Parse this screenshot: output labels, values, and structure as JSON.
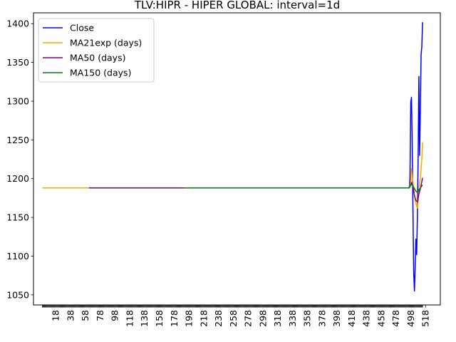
{
  "chart_data": {
    "type": "line",
    "title": "TLV:HIPR - HIPER GLOBAL: interval=1d",
    "xlabel": "",
    "ylabel": "",
    "xlim": [
      -12,
      538
    ],
    "ylim": [
      1037,
      1414
    ],
    "x_ticks": [
      18,
      38,
      58,
      78,
      98,
      118,
      138,
      158,
      178,
      198,
      218,
      238,
      258,
      278,
      298,
      318,
      338,
      358,
      378,
      398,
      418,
      438,
      458,
      478,
      498,
      518
    ],
    "x_tick_labels": [
      "18",
      "38",
      "58",
      "78",
      "98",
      "118",
      "138",
      "158",
      "178",
      "198",
      "218",
      "238",
      "258",
      "278",
      "298",
      "318",
      "338",
      "358",
      "378",
      "398",
      "418",
      "438",
      "458",
      "478",
      "498",
      "518"
    ],
    "y_ticks": [
      1050,
      1100,
      1150,
      1200,
      1250,
      1300,
      1350,
      1400
    ],
    "y_tick_labels": [
      "1050",
      "1100",
      "1150",
      "1200",
      "1250",
      "1300",
      "1350",
      "1400"
    ],
    "legend_position": "top-left",
    "grid": false,
    "series": [
      {
        "name": "Close",
        "color": "#0000ff",
        "points": [
          [
            496,
            1188
          ],
          [
            497,
            1200
          ],
          [
            498,
            1298
          ],
          [
            499,
            1305
          ],
          [
            500,
            1250
          ],
          [
            501,
            1160
          ],
          [
            502,
            1080
          ],
          [
            503,
            1055
          ],
          [
            504,
            1085
          ],
          [
            505,
            1122
          ],
          [
            506,
            1102
          ],
          [
            507,
            1150
          ],
          [
            508,
            1230
          ],
          [
            509,
            1332
          ],
          [
            510,
            1230
          ],
          [
            511,
            1290
          ],
          [
            512,
            1360
          ],
          [
            513,
            1370
          ],
          [
            514,
            1402
          ]
        ]
      },
      {
        "name": "MA21exp (days)",
        "color": "#ffa500",
        "points": [
          [
            0,
            1188
          ],
          [
            63,
            1188
          ],
          [
            496,
            1188
          ],
          [
            498,
            1196
          ],
          [
            499,
            1213
          ],
          [
            500,
            1205
          ],
          [
            502,
            1188
          ],
          [
            504,
            1172
          ],
          [
            506,
            1164
          ],
          [
            507,
            1162
          ],
          [
            508,
            1170
          ],
          [
            509,
            1188
          ],
          [
            511,
            1200
          ],
          [
            513,
            1225
          ],
          [
            514,
            1247
          ]
        ]
      },
      {
        "name": "MA50 (days)",
        "color": "#800080",
        "points": [
          [
            63,
            1188
          ],
          [
            192,
            1188
          ],
          [
            496,
            1188
          ],
          [
            499,
            1195
          ],
          [
            501,
            1190
          ],
          [
            503,
            1178
          ],
          [
            505,
            1172
          ],
          [
            507,
            1170
          ],
          [
            509,
            1180
          ],
          [
            511,
            1187
          ],
          [
            513,
            1196
          ],
          [
            514,
            1201
          ]
        ]
      },
      {
        "name": "MA150 (days)",
        "color": "#008000",
        "points": [
          [
            192,
            1188
          ],
          [
            496,
            1188
          ],
          [
            499,
            1193
          ],
          [
            502,
            1189
          ],
          [
            505,
            1184
          ],
          [
            507,
            1182
          ],
          [
            509,
            1185
          ],
          [
            511,
            1188
          ],
          [
            514,
            1192
          ]
        ]
      }
    ]
  }
}
